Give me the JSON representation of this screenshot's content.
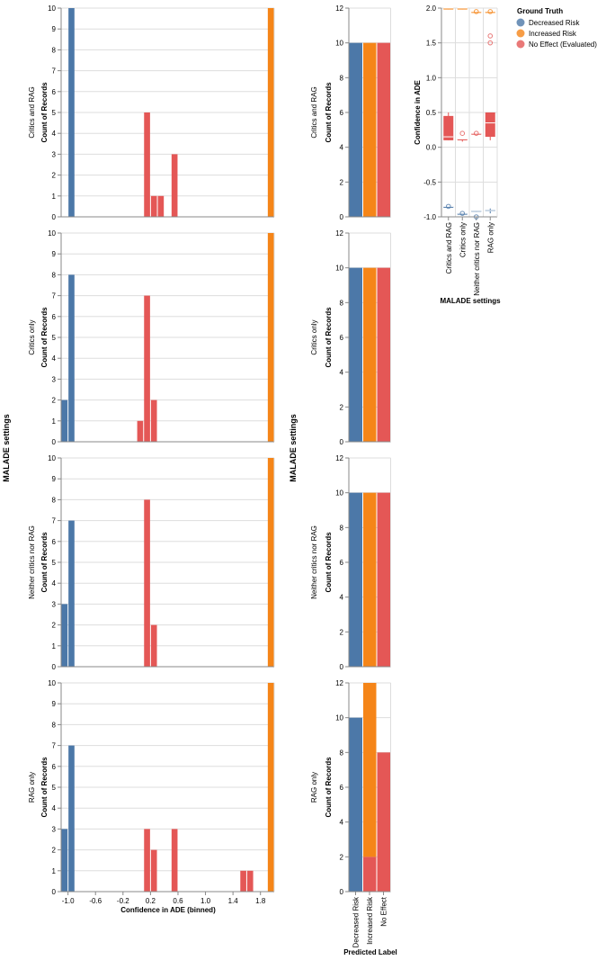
{
  "colors": {
    "decreased": "#4c78a8",
    "increased": "#f58518",
    "noeffect": "#e45756",
    "grid": "#dddddd",
    "axis": "#888888"
  },
  "legend": {
    "title": "Ground Truth",
    "items": [
      "Decreased Risk",
      "Increased Risk",
      "No Effect (Evaluated)"
    ]
  },
  "chart_data": [
    {
      "type": "bar",
      "title": "",
      "xlabel": "Confidence in ADE (binned)",
      "ylabel": "Count of Records",
      "facet_label": "MALADE settings",
      "xlim": [
        -1.1,
        2.0
      ],
      "xticks": [
        "-1.0",
        "-0.6",
        "-0.2",
        "0.2",
        "0.6",
        "1.0",
        "1.4",
        "1.8"
      ],
      "ylim": [
        0,
        10
      ],
      "yticks": [
        "0",
        "1",
        "2",
        "3",
        "4",
        "5",
        "6",
        "7",
        "8",
        "9",
        "10"
      ],
      "panels": [
        {
          "label": "Critics and RAG",
          "bars": [
            {
              "bin": [
                -1.0,
                -0.9
              ],
              "series": "Decreased Risk",
              "value": 10
            },
            {
              "bin": [
                0.1,
                0.2
              ],
              "series": "No Effect (Evaluated)",
              "value": 5
            },
            {
              "bin": [
                0.2,
                0.3
              ],
              "series": "No Effect (Evaluated)",
              "value": 1
            },
            {
              "bin": [
                0.3,
                0.4
              ],
              "series": "No Effect (Evaluated)",
              "value": 1
            },
            {
              "bin": [
                0.5,
                0.6
              ],
              "series": "No Effect (Evaluated)",
              "value": 3
            },
            {
              "bin": [
                1.9,
                2.0
              ],
              "series": "Increased Risk",
              "value": 10
            }
          ]
        },
        {
          "label": "Critics only",
          "bars": [
            {
              "bin": [
                -1.1,
                -1.0
              ],
              "series": "Decreased Risk",
              "value": 2
            },
            {
              "bin": [
                -1.0,
                -0.9
              ],
              "series": "Decreased Risk",
              "value": 8
            },
            {
              "bin": [
                0.0,
                0.1
              ],
              "series": "No Effect (Evaluated)",
              "value": 1
            },
            {
              "bin": [
                0.1,
                0.2
              ],
              "series": "No Effect (Evaluated)",
              "value": 7
            },
            {
              "bin": [
                0.2,
                0.3
              ],
              "series": "No Effect (Evaluated)",
              "value": 2
            },
            {
              "bin": [
                1.9,
                2.0
              ],
              "series": "Increased Risk",
              "value": 10
            }
          ]
        },
        {
          "label": "Neither critics nor RAG",
          "bars": [
            {
              "bin": [
                -1.1,
                -1.0
              ],
              "series": "Decreased Risk",
              "value": 3
            },
            {
              "bin": [
                -1.0,
                -0.9
              ],
              "series": "Decreased Risk",
              "value": 7
            },
            {
              "bin": [
                0.1,
                0.2
              ],
              "series": "No Effect (Evaluated)",
              "value": 8
            },
            {
              "bin": [
                0.2,
                0.3
              ],
              "series": "No Effect (Evaluated)",
              "value": 2
            },
            {
              "bin": [
                1.9,
                2.0
              ],
              "series": "Increased Risk",
              "value": 10
            }
          ]
        },
        {
          "label": "RAG only",
          "bars": [
            {
              "bin": [
                -1.1,
                -1.0
              ],
              "series": "Decreased Risk",
              "value": 3
            },
            {
              "bin": [
                -1.0,
                -0.9
              ],
              "series": "Decreased Risk",
              "value": 7
            },
            {
              "bin": [
                0.1,
                0.2
              ],
              "series": "No Effect (Evaluated)",
              "value": 3
            },
            {
              "bin": [
                0.2,
                0.3
              ],
              "series": "No Effect (Evaluated)",
              "value": 2
            },
            {
              "bin": [
                0.5,
                0.6
              ],
              "series": "No Effect (Evaluated)",
              "value": 3
            },
            {
              "bin": [
                1.5,
                1.6
              ],
              "series": "No Effect (Evaluated)",
              "value": 1
            },
            {
              "bin": [
                1.6,
                1.7
              ],
              "series": "No Effect (Evaluated)",
              "value": 1
            },
            {
              "bin": [
                1.9,
                2.0
              ],
              "series": "Increased Risk",
              "value": 10
            }
          ]
        }
      ]
    },
    {
      "type": "bar",
      "stacked": true,
      "xlabel": "Predicted Label",
      "ylabel": "Count of Records",
      "facet_label": "MALADE settings",
      "categories": [
        "Decreased Risk",
        "Increased Risk",
        "No Effect"
      ],
      "ylim": [
        0,
        12
      ],
      "yticks": [
        "0",
        "2",
        "4",
        "6",
        "8",
        "10",
        "12"
      ],
      "panels": [
        {
          "label": "Critics and RAG",
          "stacks": [
            [
              {
                "series": "Decreased Risk",
                "value": 10
              }
            ],
            [
              {
                "series": "Increased Risk",
                "value": 10
              }
            ],
            [
              {
                "series": "No Effect (Evaluated)",
                "value": 10
              }
            ]
          ]
        },
        {
          "label": "Critics only",
          "stacks": [
            [
              {
                "series": "Decreased Risk",
                "value": 10
              }
            ],
            [
              {
                "series": "Increased Risk",
                "value": 10
              }
            ],
            [
              {
                "series": "No Effect (Evaluated)",
                "value": 10
              }
            ]
          ]
        },
        {
          "label": "Neither critics nor RAG",
          "stacks": [
            [
              {
                "series": "Decreased Risk",
                "value": 10
              }
            ],
            [
              {
                "series": "Increased Risk",
                "value": 10
              }
            ],
            [
              {
                "series": "No Effect (Evaluated)",
                "value": 10
              }
            ]
          ]
        },
        {
          "label": "RAG only",
          "stacks": [
            [
              {
                "series": "Decreased Risk",
                "value": 10
              }
            ],
            [
              {
                "series": "No Effect (Evaluated)",
                "value": 2
              },
              {
                "series": "Increased Risk",
                "value": 10
              }
            ],
            [
              {
                "series": "No Effect (Evaluated)",
                "value": 8
              }
            ]
          ]
        }
      ]
    },
    {
      "type": "boxplot",
      "xlabel": "MALADE settings",
      "ylabel": "Confidence in ADE",
      "categories": [
        "Critics and RAG",
        "Critics only",
        "Neither critics nor RAG",
        "RAG only"
      ],
      "ylim": [
        -1.0,
        2.0
      ],
      "yticks": [
        "-1.0",
        "-0.5",
        "0.0",
        "0.5",
        "1.0",
        "1.5",
        "2.0"
      ],
      "boxes": [
        {
          "category": "Critics and RAG",
          "series": "Increased Risk",
          "q1": 1.98,
          "median": 2.0,
          "q3": 2.0,
          "lo": 1.98,
          "hi": 2.0,
          "outliers": []
        },
        {
          "category": "Critics and RAG",
          "series": "No Effect (Evaluated)",
          "q1": 0.1,
          "median": 0.15,
          "q3": 0.45,
          "lo": 0.1,
          "hi": 0.5,
          "outliers": []
        },
        {
          "category": "Critics and RAG",
          "series": "Decreased Risk",
          "q1": -0.85,
          "median": -0.85,
          "q3": -0.85,
          "lo": -0.85,
          "hi": -0.85,
          "outliers": [
            -0.85
          ]
        },
        {
          "category": "Critics only",
          "series": "Increased Risk",
          "q1": 1.98,
          "median": 2.0,
          "q3": 2.0,
          "lo": 1.98,
          "hi": 2.0,
          "outliers": []
        },
        {
          "category": "Critics only",
          "series": "No Effect (Evaluated)",
          "q1": 0.1,
          "median": 0.12,
          "q3": 0.12,
          "lo": 0.08,
          "hi": 0.12,
          "outliers": [
            0.2
          ]
        },
        {
          "category": "Critics only",
          "series": "Decreased Risk",
          "q1": -0.95,
          "median": -0.95,
          "q3": -0.95,
          "lo": -0.95,
          "hi": -0.95,
          "outliers": [
            -0.95
          ]
        },
        {
          "category": "Neither critics nor RAG",
          "series": "Increased Risk",
          "q1": 1.95,
          "median": 1.95,
          "q3": 1.95,
          "lo": 1.95,
          "hi": 1.95,
          "outliers": [
            1.95
          ]
        },
        {
          "category": "Neither critics nor RAG",
          "series": "No Effect (Evaluated)",
          "q1": 0.2,
          "median": 0.2,
          "q3": 0.2,
          "lo": 0.2,
          "hi": 0.2,
          "outliers": [
            0.2
          ]
        },
        {
          "category": "Neither critics nor RAG",
          "series": "Decreased Risk",
          "q1": -0.93,
          "median": -0.92,
          "q3": -0.91,
          "lo": -0.93,
          "hi": -0.91,
          "outliers": [
            -1.0
          ]
        },
        {
          "category": "RAG only",
          "series": "Increased Risk",
          "q1": 1.95,
          "median": 1.95,
          "q3": 1.95,
          "lo": 1.95,
          "hi": 1.95,
          "outliers": [
            1.95
          ]
        },
        {
          "category": "RAG only",
          "series": "No Effect (Evaluated)",
          "q1": 0.15,
          "median": 0.35,
          "q3": 0.5,
          "lo": 0.1,
          "hi": 0.5,
          "outliers": [
            1.5,
            1.6
          ]
        },
        {
          "category": "RAG only",
          "series": "Decreased Risk",
          "q1": -0.92,
          "median": -0.91,
          "q3": -0.9,
          "lo": -0.95,
          "hi": -0.88,
          "outliers": []
        }
      ]
    }
  ]
}
